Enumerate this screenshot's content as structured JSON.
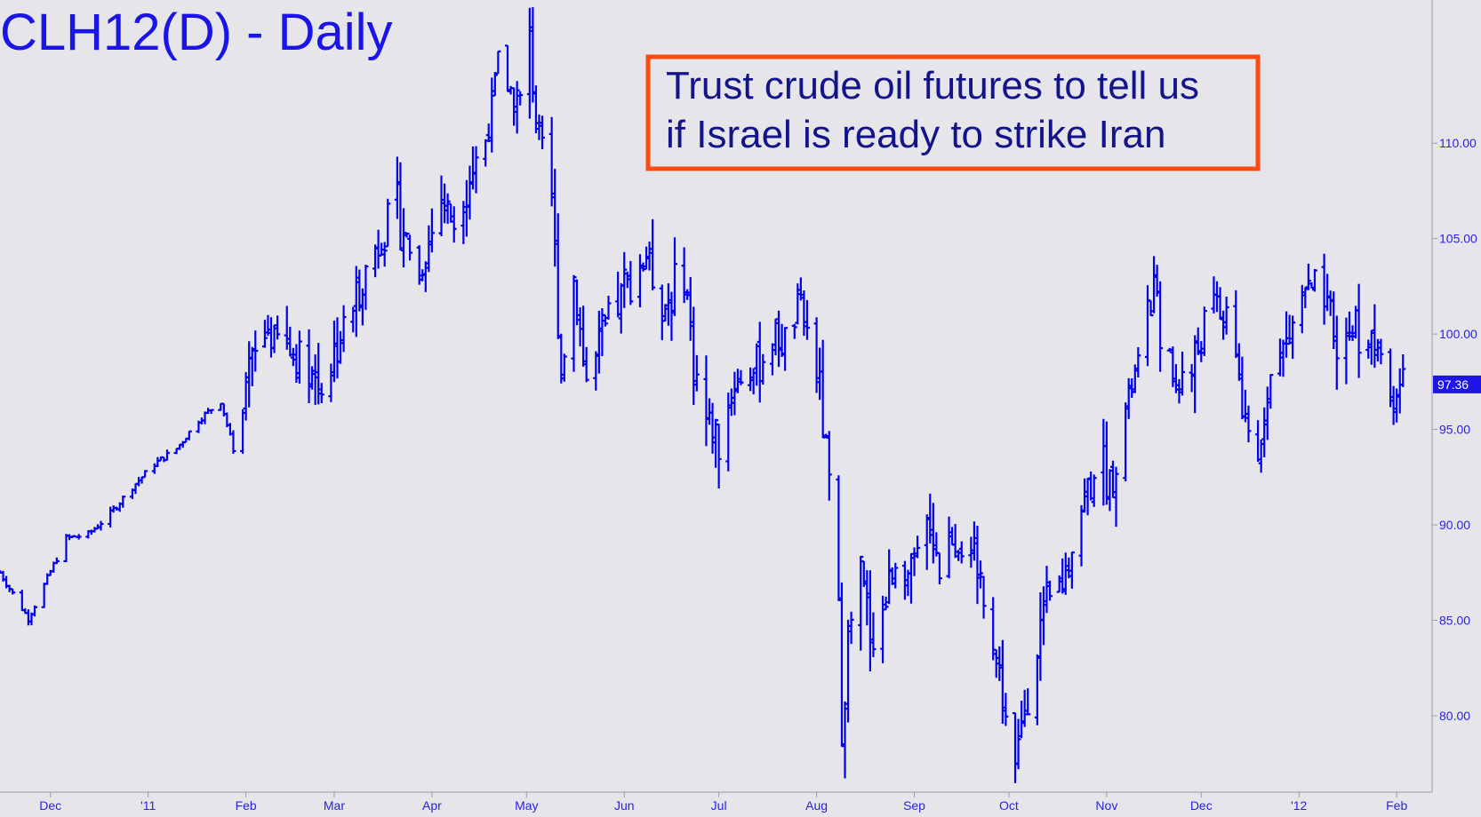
{
  "chart_data": {
    "type": "ohlc",
    "title": "CLH12(D) - Daily",
    "annotation": {
      "lines": [
        "Trust crude oil futures to tell us",
        "if Israel is ready to strike Iran"
      ]
    },
    "ylim": [
      76,
      117.5
    ],
    "y_ticks": [
      {
        "value": 80,
        "label": "80.00"
      },
      {
        "value": 85,
        "label": "85.00"
      },
      {
        "value": 90,
        "label": "90.00"
      },
      {
        "value": 95,
        "label": "95.00"
      },
      {
        "value": 100,
        "label": "100.00"
      },
      {
        "value": 105,
        "label": "105.00"
      },
      {
        "value": 110,
        "label": "110.00"
      }
    ],
    "last_price": {
      "value": 97.36,
      "label": "97.36"
    },
    "x_ticks": [
      {
        "date": "2010-12-01",
        "label": "Dec"
      },
      {
        "date": "2011-01-01",
        "label": "'11"
      },
      {
        "date": "2011-02-01",
        "label": "Feb"
      },
      {
        "date": "2011-03-01",
        "label": "Mar"
      },
      {
        "date": "2011-04-01",
        "label": "Apr"
      },
      {
        "date": "2011-05-01",
        "label": "May"
      },
      {
        "date": "2011-06-01",
        "label": "Jun"
      },
      {
        "date": "2011-07-01",
        "label": "Jul"
      },
      {
        "date": "2011-08-01",
        "label": "Aug"
      },
      {
        "date": "2011-09-01",
        "label": "Sep"
      },
      {
        "date": "2011-10-01",
        "label": "Oct"
      },
      {
        "date": "2011-11-01",
        "label": "Nov"
      },
      {
        "date": "2011-12-01",
        "label": "Dec"
      },
      {
        "date": "2012-01-01",
        "label": "'12"
      },
      {
        "date": "2012-02-01",
        "label": "Feb"
      }
    ],
    "x_start": "2010-11-15",
    "x_end": "2012-02-08",
    "path": [
      [
        "2010-11-15",
        87.5
      ],
      [
        "2010-11-19",
        86.4
      ],
      [
        "2010-11-24",
        85.1
      ],
      [
        "2010-11-30",
        87.2
      ],
      [
        "2010-12-06",
        89.3
      ],
      [
        "2010-12-13",
        89.5
      ],
      [
        "2010-12-20",
        90.6
      ],
      [
        "2010-12-27",
        92.0
      ],
      [
        "2011-01-03",
        93.2
      ],
      [
        "2011-01-10",
        94.0
      ],
      [
        "2011-01-17",
        95.5
      ],
      [
        "2011-01-24",
        96.5
      ],
      [
        "2011-01-28",
        94.0
      ],
      [
        "2011-02-01",
        96.5
      ],
      [
        "2011-02-02",
        98.0
      ],
      [
        "2011-02-08",
        100.3
      ],
      [
        "2011-02-14",
        99.2
      ],
      [
        "2011-02-21",
        98.3
      ],
      [
        "2011-02-25",
        97.2
      ],
      [
        "2011-03-01",
        99.0
      ],
      [
        "2011-03-07",
        101.5
      ],
      [
        "2011-03-14",
        104.5
      ],
      [
        "2011-03-21",
        106.5
      ],
      [
        "2011-03-28",
        103.0
      ],
      [
        "2011-04-04",
        107.2
      ],
      [
        "2011-04-08",
        106.0
      ],
      [
        "2011-04-11",
        107.5
      ],
      [
        "2011-04-18",
        110.2
      ],
      [
        "2011-04-22",
        113.8
      ],
      [
        "2011-04-29",
        112.0
      ],
      [
        "2011-05-02",
        115.5
      ],
      [
        "2011-05-05",
        109.5
      ],
      [
        "2011-05-09",
        107.0
      ],
      [
        "2011-05-12",
        98.0
      ],
      [
        "2011-05-16",
        103.0
      ],
      [
        "2011-05-20",
        97.5
      ],
      [
        "2011-05-26",
        100.0
      ],
      [
        "2011-06-01",
        102.5
      ],
      [
        "2011-06-08",
        104.2
      ],
      [
        "2011-06-14",
        101.5
      ],
      [
        "2011-06-20",
        103.5
      ],
      [
        "2011-06-23",
        98.5
      ],
      [
        "2011-06-27",
        95.5
      ],
      [
        "2011-07-01",
        94.5
      ],
      [
        "2011-07-06",
        97.5
      ],
      [
        "2011-07-12",
        98.0
      ],
      [
        "2011-07-18",
        100.0
      ],
      [
        "2011-07-22",
        99.5
      ],
      [
        "2011-07-27",
        101.5
      ],
      [
        "2011-07-29",
        100.0
      ],
      [
        "2011-08-02",
        97.0
      ],
      [
        "2011-08-05",
        92.0
      ],
      [
        "2011-08-08",
        85.5
      ],
      [
        "2011-08-09",
        79.5
      ],
      [
        "2011-08-11",
        84.0
      ],
      [
        "2011-08-15",
        87.5
      ],
      [
        "2011-08-18",
        84.5
      ],
      [
        "2011-08-23",
        86.0
      ],
      [
        "2011-08-26",
        88.5
      ],
      [
        "2011-08-31",
        87.0
      ],
      [
        "2011-09-06",
        90.5
      ],
      [
        "2011-09-09",
        88.0
      ],
      [
        "2011-09-13",
        89.5
      ],
      [
        "2011-09-19",
        88.0
      ],
      [
        "2011-09-22",
        87.0
      ],
      [
        "2011-09-26",
        84.0
      ],
      [
        "2011-09-29",
        81.0
      ],
      [
        "2011-10-03",
        77.0
      ],
      [
        "2011-10-06",
        80.5
      ],
      [
        "2011-10-10",
        84.0
      ],
      [
        "2011-10-14",
        86.0
      ],
      [
        "2011-10-19",
        87.5
      ],
      [
        "2011-10-24",
        91.0
      ],
      [
        "2011-10-28",
        93.0
      ],
      [
        "2011-11-02",
        92.5
      ],
      [
        "2011-11-07",
        96.0
      ],
      [
        "2011-11-11",
        98.5
      ],
      [
        "2011-11-16",
        102.5
      ],
      [
        "2011-11-22",
        97.5
      ],
      [
        "2011-11-28",
        98.0
      ],
      [
        "2011-12-02",
        100.5
      ],
      [
        "2011-12-06",
        101.5
      ],
      [
        "2011-12-12",
        99.5
      ],
      [
        "2011-12-15",
        94.5
      ],
      [
        "2011-12-19",
        93.2
      ],
      [
        "2011-12-22",
        97.5
      ],
      [
        "2011-12-28",
        99.5
      ],
      [
        "2012-01-03",
        102.5
      ],
      [
        "2012-01-09",
        101.5
      ],
      [
        "2012-01-13",
        99.0
      ],
      [
        "2012-01-19",
        100.5
      ],
      [
        "2012-01-24",
        99.5
      ],
      [
        "2012-01-27",
        98.8
      ],
      [
        "2012-01-30",
        96.5
      ],
      [
        "2012-02-01",
        97.0
      ],
      [
        "2012-02-03",
        97.36
      ]
    ]
  },
  "colors": {
    "background": "#e6e6ea",
    "bars": "#0000ee",
    "title": "#1a14e8",
    "axis_text": "#2a22e0",
    "annotation_border": "#ff4a10",
    "annotation_text": "#14148a",
    "last_price_box": "#1e14e6"
  }
}
